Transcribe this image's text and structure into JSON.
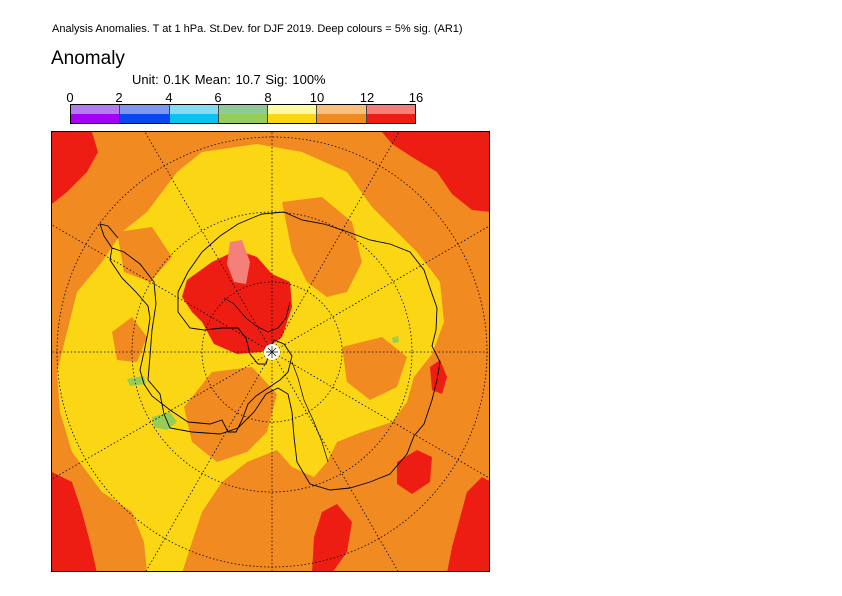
{
  "header": {
    "title": "Analysis Anomalies. T at 1 hPa. St.Dev. for DJF 2019.  Deep colours = 5% sig. (AR1)"
  },
  "panel": {
    "title": "Anomaly",
    "stats": "Unit: 0.1K  Mean: 10.7  Sig: 100%"
  },
  "legend": {
    "ticks": [
      "0",
      "2",
      "4",
      "6",
      "8",
      "10",
      "12",
      "16"
    ],
    "bins": [
      {
        "range": "0-2",
        "light": "#b57bf0",
        "deep": "#a400f6"
      },
      {
        "range": "2-4",
        "light": "#7e98f2",
        "deep": "#0a47f0"
      },
      {
        "range": "4-6",
        "light": "#85dbf4",
        "deep": "#0cc2f2"
      },
      {
        "range": "6-8",
        "light": "#8fcc93",
        "deep": "#96cc58"
      },
      {
        "range": "8-10",
        "light": "#fdfba4",
        "deep": "#fbd614"
      },
      {
        "range": "10-12",
        "light": "#f7c07c",
        "deep": "#f28a22"
      },
      {
        "range": "12-16",
        "light": "#f5807a",
        "deep": "#ee1d14"
      }
    ]
  },
  "map": {
    "projection": "polar-stereographic-south",
    "grid": "dotted latitude circles, meridians every 30 degrees",
    "colors": {
      "background": "#f28a22",
      "yellow": "#fbd614",
      "red": "#ee1d14",
      "pink": "#f5807a",
      "green": "#96cc58",
      "coast": "#000000"
    }
  }
}
